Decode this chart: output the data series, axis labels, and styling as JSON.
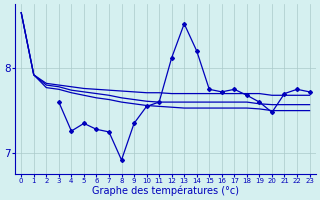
{
  "xlabel": "Graphe des températures (°c)",
  "background_color": "#d5f0f0",
  "line_color": "#0000bb",
  "grid_color": "#aacaca",
  "x_ticks": [
    0,
    1,
    2,
    3,
    4,
    5,
    6,
    7,
    8,
    9,
    10,
    11,
    12,
    13,
    14,
    15,
    16,
    17,
    18,
    19,
    20,
    21,
    22,
    23
  ],
  "ylim": [
    6.75,
    8.75
  ],
  "yticks": [
    7,
    8
  ],
  "line1": [
    8.65,
    7.92,
    7.82,
    7.8,
    7.78,
    7.76,
    7.75,
    7.74,
    7.73,
    7.72,
    7.71,
    7.71,
    7.7,
    7.7,
    7.7,
    7.7,
    7.7,
    7.7,
    7.7,
    7.7,
    7.68,
    7.68,
    7.68,
    7.68
  ],
  "line2": [
    8.65,
    7.92,
    7.8,
    7.78,
    7.74,
    7.72,
    7.7,
    7.68,
    7.65,
    7.63,
    7.61,
    7.6,
    7.6,
    7.6,
    7.6,
    7.6,
    7.6,
    7.6,
    7.6,
    7.58,
    7.57,
    7.57,
    7.57,
    7.57
  ],
  "line3": [
    8.65,
    7.92,
    7.77,
    7.75,
    7.71,
    7.68,
    7.65,
    7.63,
    7.6,
    7.58,
    7.56,
    7.55,
    7.54,
    7.53,
    7.53,
    7.53,
    7.53,
    7.53,
    7.53,
    7.52,
    7.5,
    7.5,
    7.5,
    7.5
  ],
  "line4_x": [
    3,
    4,
    5,
    6,
    7,
    8,
    9,
    10,
    11,
    12,
    13,
    14,
    15,
    16,
    17,
    18,
    19,
    20,
    21,
    22,
    23
  ],
  "line4_y": [
    7.6,
    7.26,
    7.35,
    7.28,
    7.25,
    6.92,
    7.35,
    7.55,
    7.6,
    8.12,
    8.52,
    8.2,
    7.75,
    7.72,
    7.75,
    7.68,
    7.6,
    7.48,
    7.7,
    7.75,
    7.72
  ]
}
